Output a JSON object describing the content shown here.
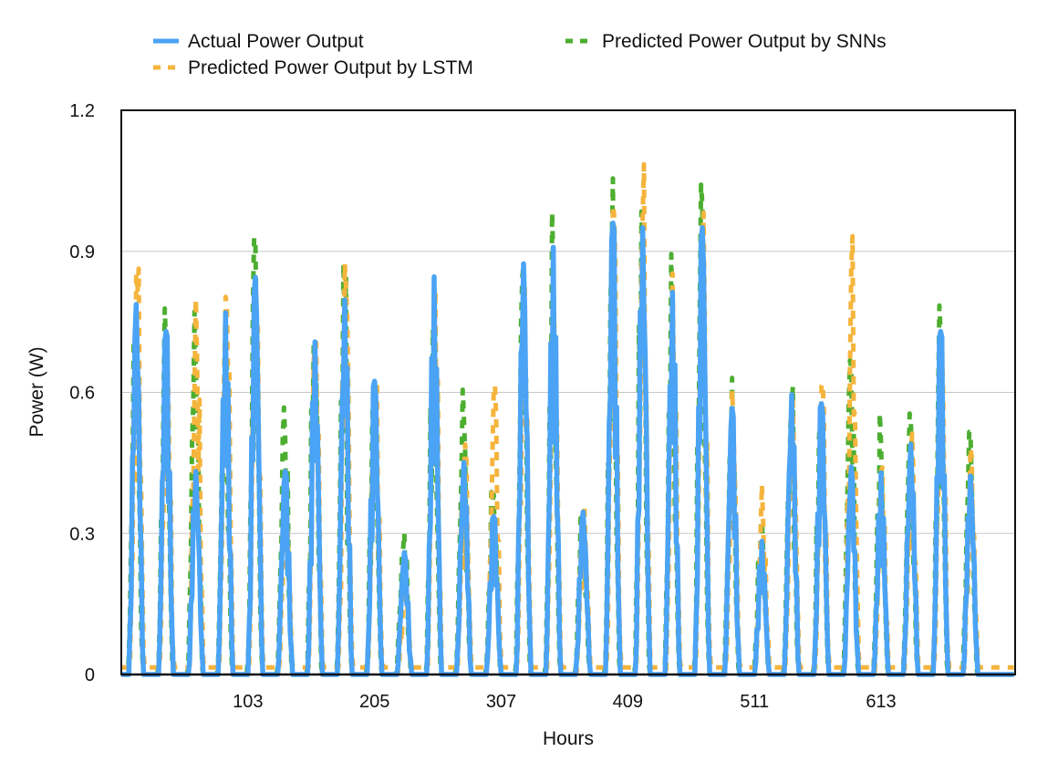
{
  "chart_data": {
    "type": "line",
    "title": "",
    "xlabel": "Hours",
    "ylabel": "Power (W)",
    "ylim": [
      0,
      1.2
    ],
    "xlim": [
      1,
      721
    ],
    "x_ticks": [
      103,
      205,
      307,
      409,
      511,
      613
    ],
    "y_ticks": [
      0,
      0.3,
      0.6,
      0.9,
      1.2
    ],
    "y_tick_labels": [
      "0",
      "0.3",
      "0.6",
      "0.9",
      "1.2"
    ],
    "grid": "horizontal",
    "legend_position": "top",
    "daily_peaks": {
      "hours_per_day": 24,
      "actual": [
        0.82,
        0.76,
        0.45,
        0.78,
        0.88,
        0.45,
        0.73,
        0.83,
        0.65,
        0.27,
        0.85,
        0.47,
        0.35,
        0.91,
        0.91,
        0.36,
        1.0,
        0.99,
        0.83,
        0.99,
        0.59,
        0.29,
        0.62,
        0.6,
        0.46,
        0.43,
        0.51,
        0.76,
        0.44,
        0.0
      ],
      "lstm": [
        0.91,
        0.72,
        0.79,
        0.85,
        0.86,
        0.4,
        0.79,
        0.83,
        0.71,
        0.2,
        0.82,
        0.47,
        0.59,
        0.9,
        0.9,
        0.36,
        0.97,
        0.97,
        0.8,
        0.97,
        0.57,
        0.37,
        0.63,
        0.6,
        0.85,
        0.43,
        0.51,
        0.73,
        0.44,
        0.0
      ],
      "snn": [
        0.8,
        0.76,
        0.78,
        0.7,
        0.86,
        0.56,
        0.75,
        0.84,
        0.65,
        0.32,
        0.8,
        0.57,
        0.4,
        0.88,
        0.88,
        0.36,
        0.97,
        0.97,
        0.8,
        0.97,
        0.58,
        0.34,
        0.63,
        0.63,
        0.75,
        0.5,
        0.51,
        0.73,
        0.54,
        0.0
      ]
    },
    "series": [
      {
        "name": "Actual Power Output",
        "color": "#4aa3f5",
        "style": "solid"
      },
      {
        "name": "Predicted Power Output by LSTM",
        "color": "#f5b43c",
        "style": "dashed"
      },
      {
        "name": "Predicted Power Output by SNNs",
        "color": "#4cae2f",
        "style": "dashed"
      }
    ]
  }
}
